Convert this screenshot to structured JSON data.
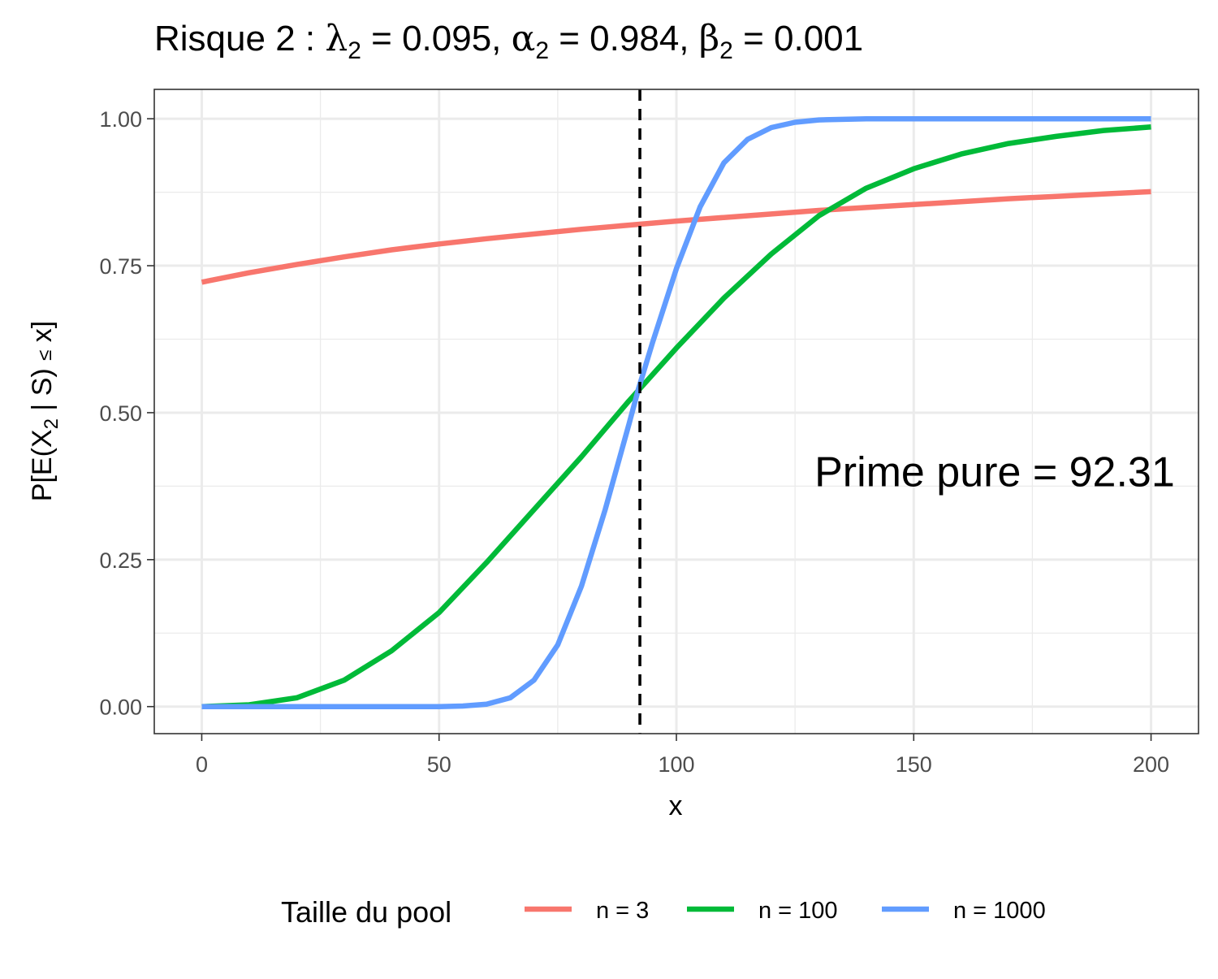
{
  "chart_data": {
    "type": "line",
    "title": {
      "prefix": "Risque 2 : ",
      "params": [
        {
          "symbol": "λ",
          "sub": "2",
          "value": "0.095",
          "sep": ", "
        },
        {
          "symbol": "α",
          "sub": "2",
          "value": "0.984",
          "sep": ", "
        },
        {
          "symbol": "β",
          "sub": "2",
          "value": "0.001",
          "sep": ""
        }
      ]
    },
    "xlabel": "x",
    "ylabel": {
      "before": "P[E(X",
      "sub": "2",
      "middle": " | S) ",
      "op": "≤",
      "after": " x]"
    },
    "xlim": [
      -10,
      210
    ],
    "ylim": [
      -0.046,
      1.05
    ],
    "x_ticks": [
      0,
      50,
      100,
      150,
      200
    ],
    "x_tick_labels": [
      "0",
      "50",
      "100",
      "150",
      "200"
    ],
    "x_minor_ticks": [
      25,
      75,
      125,
      175
    ],
    "y_ticks": [
      0,
      0.25,
      0.5,
      0.75,
      1.0
    ],
    "y_tick_labels": [
      "0.00",
      "0.25",
      "0.50",
      "0.75",
      "1.00"
    ],
    "y_minor_ticks": [
      0.125,
      0.375,
      0.625,
      0.875
    ],
    "grid": true,
    "reference_line": {
      "x": 92.31,
      "style": "dashed",
      "color": "#000000"
    },
    "annotation": {
      "text": "Prime pure = 92.31",
      "x": 205,
      "y": 0.4,
      "anchor": "end"
    },
    "legend": {
      "title": "Taille du pool",
      "position": "bottom"
    },
    "series": [
      {
        "name": "n = 3",
        "color": "#F8766D",
        "x": [
          0,
          10,
          20,
          30,
          40,
          50,
          60,
          70,
          80,
          90,
          100,
          110,
          120,
          130,
          140,
          150,
          160,
          170,
          180,
          190,
          200
        ],
        "values": [
          0.722,
          0.738,
          0.752,
          0.765,
          0.777,
          0.787,
          0.796,
          0.804,
          0.812,
          0.819,
          0.826,
          0.832,
          0.838,
          0.844,
          0.849,
          0.854,
          0.859,
          0.864,
          0.868,
          0.872,
          0.876
        ]
      },
      {
        "name": "n = 100",
        "color": "#00BA38",
        "x": [
          0,
          10,
          20,
          30,
          40,
          50,
          60,
          70,
          80,
          90,
          100,
          110,
          120,
          130,
          140,
          150,
          160,
          170,
          180,
          190,
          200
        ],
        "values": [
          0.0,
          0.003,
          0.015,
          0.045,
          0.095,
          0.16,
          0.245,
          0.335,
          0.425,
          0.52,
          0.61,
          0.695,
          0.77,
          0.835,
          0.882,
          0.915,
          0.94,
          0.958,
          0.97,
          0.98,
          0.986
        ]
      },
      {
        "name": "n = 1000",
        "color": "#619CFF",
        "x": [
          0,
          20,
          40,
          50,
          55,
          60,
          65,
          70,
          75,
          80,
          85,
          90,
          92,
          95,
          100,
          105,
          110,
          115,
          120,
          125,
          130,
          140,
          150,
          175,
          200
        ],
        "values": [
          0.0,
          0.0,
          0.0,
          0.0,
          0.001,
          0.004,
          0.015,
          0.045,
          0.105,
          0.205,
          0.335,
          0.48,
          0.54,
          0.62,
          0.745,
          0.85,
          0.925,
          0.965,
          0.985,
          0.994,
          0.998,
          1.0,
          1.0,
          1.0,
          1.0
        ]
      }
    ]
  }
}
